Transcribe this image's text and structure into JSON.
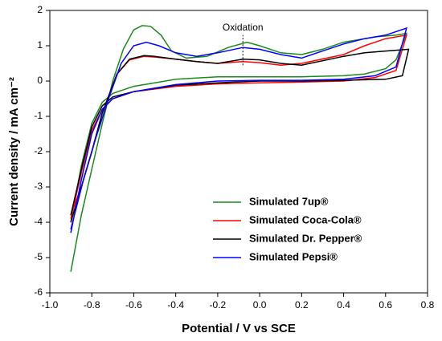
{
  "chart_data": {
    "type": "line",
    "xlabel": "Potential / V vs SCE",
    "ylabel": "Current density / mA cm⁻²",
    "xlim": [
      -1.0,
      0.8
    ],
    "ylim": [
      -6,
      2
    ],
    "xticks": [
      {
        "value": -1.0,
        "label": "-1.0"
      },
      -0.8,
      -0.6,
      -0.4,
      -0.2,
      {
        "value": 0,
        "label": "0.0"
      },
      0.2,
      0.4,
      0.6,
      0.8
    ],
    "yticks": [
      -6,
      -5,
      -4,
      -3,
      -2,
      -1,
      0,
      1,
      2
    ],
    "legend": "lower right",
    "annotation": {
      "text": "Oxidation",
      "x": -0.08,
      "y": [
        0.45,
        1.3
      ]
    },
    "series": [
      {
        "name": "Simulated 7up®",
        "color": "#1a8a1a",
        "x": [
          -0.9,
          -0.85,
          -0.8,
          -0.75,
          -0.7,
          -0.6,
          -0.5,
          -0.4,
          -0.2,
          0,
          0.2,
          0.4,
          0.5,
          0.6,
          0.65,
          0.7,
          0.65,
          0.55,
          0.4,
          0.3,
          0.2,
          0.1,
          0,
          -0.06,
          -0.15,
          -0.25,
          -0.35,
          -0.42,
          -0.47,
          -0.52,
          -0.56,
          -0.6,
          -0.65,
          -0.7,
          -0.75,
          -0.8,
          -0.85,
          -0.9
        ],
        "values": [
          -4.0,
          -2.4,
          -1.2,
          -0.6,
          -0.35,
          -0.15,
          -0.05,
          0.05,
          0.12,
          0.12,
          0.12,
          0.15,
          0.2,
          0.35,
          0.6,
          1.35,
          1.3,
          1.25,
          1.1,
          0.9,
          0.75,
          0.8,
          1.0,
          1.1,
          0.95,
          0.7,
          0.65,
          0.85,
          1.3,
          1.55,
          1.57,
          1.45,
          0.9,
          0.0,
          -1.2,
          -2.5,
          -3.8,
          -5.4
        ]
      },
      {
        "name": "Simulated Coca-Cola®",
        "color": "#ff0000",
        "x": [
          -0.9,
          -0.85,
          -0.8,
          -0.75,
          -0.7,
          -0.6,
          -0.4,
          -0.2,
          0,
          0.2,
          0.4,
          0.55,
          0.65,
          0.7,
          0.6,
          0.5,
          0.4,
          0.2,
          0.1,
          0,
          -0.08,
          -0.2,
          -0.3,
          -0.4,
          -0.5,
          -0.55,
          -0.62,
          -0.68,
          -0.75,
          -0.8,
          -0.85,
          -0.9
        ],
        "values": [
          -3.9,
          -2.6,
          -1.4,
          -0.8,
          -0.5,
          -0.3,
          -0.15,
          -0.08,
          -0.05,
          -0.03,
          0.0,
          0.1,
          0.3,
          1.3,
          1.2,
          1.0,
          0.75,
          0.5,
          0.45,
          0.52,
          0.55,
          0.5,
          0.55,
          0.62,
          0.68,
          0.7,
          0.6,
          0.2,
          -0.9,
          -2.0,
          -3.0,
          -3.8
        ]
      },
      {
        "name": "Simulated Dr. Pepper®",
        "color": "#000000",
        "x": [
          -0.9,
          -0.85,
          -0.8,
          -0.75,
          -0.7,
          -0.6,
          -0.4,
          -0.2,
          0,
          0.2,
          0.4,
          0.6,
          0.68,
          0.71,
          0.6,
          0.5,
          0.4,
          0.2,
          0.1,
          0,
          -0.08,
          -0.2,
          -0.3,
          -0.4,
          -0.5,
          -0.55,
          -0.62,
          -0.68,
          -0.75,
          -0.8,
          -0.85,
          -0.9
        ],
        "values": [
          -3.8,
          -2.5,
          -1.3,
          -0.7,
          -0.45,
          -0.3,
          -0.12,
          -0.05,
          0,
          0.0,
          0.02,
          0.05,
          0.15,
          0.9,
          0.85,
          0.8,
          0.7,
          0.45,
          0.5,
          0.6,
          0.62,
          0.5,
          0.55,
          0.62,
          0.7,
          0.72,
          0.62,
          0.2,
          -0.9,
          -2.0,
          -3.0,
          -4.0
        ]
      },
      {
        "name": "Simulated Pepsi®",
        "color": "#0000ff",
        "x": [
          -0.9,
          -0.85,
          -0.8,
          -0.75,
          -0.7,
          -0.6,
          -0.4,
          -0.2,
          0,
          0.2,
          0.4,
          0.55,
          0.65,
          0.7,
          0.6,
          0.5,
          0.4,
          0.3,
          0.2,
          0.1,
          0,
          -0.08,
          -0.2,
          -0.3,
          -0.4,
          -0.48,
          -0.54,
          -0.6,
          -0.66,
          -0.72,
          -0.78,
          -0.84,
          -0.9
        ],
        "values": [
          -4.3,
          -2.8,
          -1.5,
          -0.8,
          -0.5,
          -0.3,
          -0.1,
          0.0,
          0.02,
          0.02,
          0.05,
          0.15,
          0.4,
          1.5,
          1.3,
          1.2,
          1.05,
          0.85,
          0.65,
          0.75,
          0.9,
          0.95,
          0.8,
          0.7,
          0.8,
          1.0,
          1.1,
          1.0,
          0.5,
          -0.5,
          -1.6,
          -2.8,
          -4.2
        ]
      }
    ]
  }
}
